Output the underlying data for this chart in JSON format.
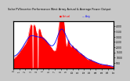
{
  "title": "Solar PV/Inverter Performance West Array Actual & Average Power Output",
  "area_color": "#ff0000",
  "avg_line_color": "#0000ff",
  "grid_color": "#ffffff",
  "outer_bg": "#c8c8c8",
  "plot_bg": "#ffffff",
  "ylim": [
    0,
    4500
  ],
  "y_ticks_right": [
    500,
    1000,
    1500,
    2000,
    2500,
    3000,
    3500,
    4000
  ],
  "title_fontsize": 3.0,
  "legend_text": "Actual  Avg"
}
